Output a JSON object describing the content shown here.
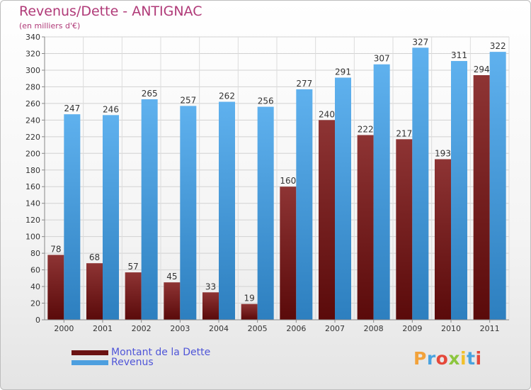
{
  "chart_data": {
    "type": "bar",
    "title": "Revenus/Dette - ANTIGNAC",
    "subtitle": "(en milliers d'€)",
    "categories": [
      "2000",
      "2001",
      "2002",
      "2003",
      "2004",
      "2005",
      "2006",
      "2007",
      "2008",
      "2009",
      "2010",
      "2011"
    ],
    "series": [
      {
        "name": "Montant de la Dette",
        "color": "#7d1f1f",
        "values": [
          78,
          68,
          57,
          45,
          33,
          19,
          160,
          240,
          222,
          217,
          193,
          294
        ]
      },
      {
        "name": "Revenus",
        "color": "#55a7e6",
        "values": [
          247,
          246,
          265,
          257,
          262,
          256,
          277,
          291,
          307,
          327,
          311,
          322
        ]
      }
    ],
    "ylim": [
      0,
      340
    ],
    "yticks": [
      0,
      20,
      40,
      60,
      80,
      100,
      120,
      140,
      160,
      180,
      200,
      220,
      240,
      260,
      280,
      300,
      320,
      340
    ],
    "grid": true,
    "legend_position": "bottom-left"
  },
  "logo": {
    "letters": [
      "P",
      "r",
      "o",
      "x",
      "i",
      "t",
      "i"
    ],
    "colors": [
      "#f2a23b",
      "#4aa3df",
      "#e5483a",
      "#8cc63e",
      "#f2c02b",
      "#4aa3df",
      "#e5483a"
    ]
  }
}
